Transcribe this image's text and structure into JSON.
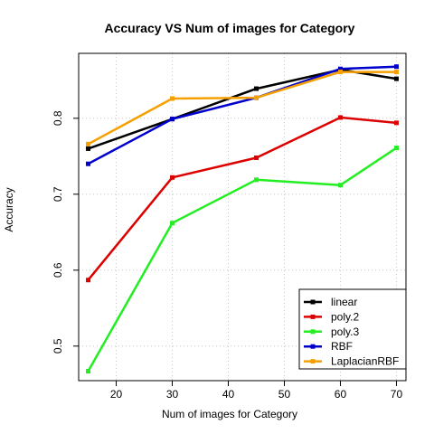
{
  "chart_data": {
    "type": "line",
    "title": "Accuracy VS Num of images for Category",
    "xlabel": "Num of images for Category",
    "ylabel": "Accuracy",
    "x": [
      15,
      30,
      45,
      60,
      70
    ],
    "xticks": [
      "20",
      "30",
      "40",
      "50",
      "60",
      "70"
    ],
    "xtick_values": [
      20,
      30,
      40,
      50,
      60,
      70
    ],
    "yticks": [
      "0.5",
      "0.6",
      "0.7",
      "0.8"
    ],
    "ytick_values": [
      0.5,
      0.6,
      0.7,
      0.8
    ],
    "xlim": [
      13.3,
      71.7
    ],
    "ylim": [
      0.4545,
      0.8855
    ],
    "grid": true,
    "legend_position": "bottom-right",
    "series": [
      {
        "name": "linear",
        "color": "#000000",
        "values": [
          0.76,
          0.799,
          0.839,
          0.864,
          0.852
        ]
      },
      {
        "name": "poly.2",
        "color": "#dd0000",
        "values": [
          0.587,
          0.722,
          0.748,
          0.801,
          0.794
        ]
      },
      {
        "name": "poly.3",
        "color": "#22ee22",
        "values": [
          0.467,
          0.662,
          0.719,
          0.712,
          0.761
        ]
      },
      {
        "name": "RBF",
        "color": "#0000cc",
        "values": [
          0.74,
          0.799,
          0.827,
          0.865,
          0.868
        ]
      },
      {
        "name": "LaplacianRBF",
        "color": "#f5a000",
        "values": [
          0.766,
          0.826,
          0.827,
          0.861,
          0.861
        ]
      }
    ]
  }
}
